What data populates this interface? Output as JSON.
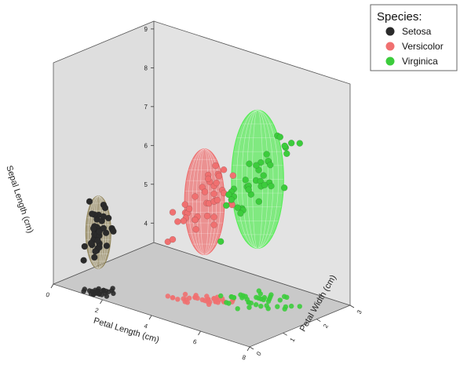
{
  "chart_data": {
    "type": "scatter3d",
    "title": "",
    "axes": {
      "x": {
        "label": "Petal Length (cm)",
        "range": [
          0,
          8
        ],
        "ticks": [
          0,
          2,
          4,
          6,
          8
        ]
      },
      "y": {
        "label": "Petal Width (cm)",
        "range": [
          0,
          3
        ],
        "ticks": [
          0,
          1,
          2,
          3
        ]
      },
      "z": {
        "label": "Sepal Length (cm)",
        "range": [
          3.5,
          9.2
        ],
        "ticks": [
          4,
          5,
          6,
          7,
          8,
          9
        ]
      }
    },
    "grid": false,
    "legend": {
      "title": "Species:",
      "position": "top-right"
    },
    "series": [
      {
        "name": "Setosa",
        "color": "#2b2b2b",
        "ellipsoid_color": "#8b7d4e",
        "points": [
          [
            1.4,
            0.2,
            5.1
          ],
          [
            1.4,
            0.2,
            4.9
          ],
          [
            1.3,
            0.2,
            4.7
          ],
          [
            1.5,
            0.2,
            4.6
          ],
          [
            1.4,
            0.2,
            5.0
          ],
          [
            1.7,
            0.4,
            5.4
          ],
          [
            1.4,
            0.3,
            4.6
          ],
          [
            1.5,
            0.2,
            5.0
          ],
          [
            1.4,
            0.2,
            4.4
          ],
          [
            1.5,
            0.1,
            4.9
          ],
          [
            1.5,
            0.2,
            5.4
          ],
          [
            1.6,
            0.2,
            4.8
          ],
          [
            1.4,
            0.1,
            4.8
          ],
          [
            1.1,
            0.1,
            4.3
          ],
          [
            1.2,
            0.2,
            5.8
          ],
          [
            1.5,
            0.4,
            5.7
          ],
          [
            1.3,
            0.4,
            5.4
          ],
          [
            1.4,
            0.3,
            5.1
          ],
          [
            1.7,
            0.3,
            5.7
          ],
          [
            1.5,
            0.3,
            5.1
          ],
          [
            1.7,
            0.2,
            5.4
          ],
          [
            1.5,
            0.4,
            5.1
          ],
          [
            1.0,
            0.2,
            4.6
          ],
          [
            1.7,
            0.5,
            5.1
          ],
          [
            1.9,
            0.2,
            4.8
          ],
          [
            1.6,
            0.2,
            5.0
          ],
          [
            1.6,
            0.4,
            5.0
          ],
          [
            1.5,
            0.2,
            5.2
          ],
          [
            1.4,
            0.2,
            5.2
          ],
          [
            1.6,
            0.2,
            4.7
          ],
          [
            1.6,
            0.2,
            4.8
          ],
          [
            1.5,
            0.4,
            5.4
          ],
          [
            1.5,
            0.1,
            5.2
          ],
          [
            1.4,
            0.2,
            5.5
          ],
          [
            1.3,
            0.2,
            5.5
          ],
          [
            1.3,
            0.3,
            4.5
          ],
          [
            1.6,
            0.6,
            5.0
          ],
          [
            1.9,
            0.4,
            5.1
          ],
          [
            1.4,
            0.3,
            4.8
          ],
          [
            1.6,
            0.2,
            5.1
          ]
        ]
      },
      {
        "name": "Versicolor",
        "color": "#f07070",
        "ellipsoid_color": "#f06060",
        "points": [
          [
            4.7,
            1.4,
            7.0
          ],
          [
            4.5,
            1.5,
            6.4
          ],
          [
            4.9,
            1.5,
            6.9
          ],
          [
            4.0,
            1.3,
            5.5
          ],
          [
            4.6,
            1.5,
            6.5
          ],
          [
            4.5,
            1.3,
            5.7
          ],
          [
            4.7,
            1.6,
            6.3
          ],
          [
            3.3,
            1.0,
            4.9
          ],
          [
            4.6,
            1.3,
            6.6
          ],
          [
            3.9,
            1.4,
            5.2
          ],
          [
            3.5,
            1.0,
            5.0
          ],
          [
            4.2,
            1.5,
            5.9
          ],
          [
            4.0,
            1.0,
            6.0
          ],
          [
            4.7,
            1.4,
            6.1
          ],
          [
            3.6,
            1.3,
            5.6
          ],
          [
            4.4,
            1.4,
            6.7
          ],
          [
            4.5,
            1.5,
            5.6
          ],
          [
            4.1,
            1.0,
            5.8
          ],
          [
            4.5,
            1.5,
            6.2
          ],
          [
            3.9,
            1.1,
            5.6
          ],
          [
            4.8,
            1.8,
            5.9
          ],
          [
            4.0,
            1.3,
            6.1
          ],
          [
            4.9,
            1.5,
            6.3
          ],
          [
            4.7,
            1.2,
            6.1
          ],
          [
            4.3,
            1.3,
            6.4
          ],
          [
            4.4,
            1.4,
            6.6
          ],
          [
            4.8,
            1.4,
            6.8
          ],
          [
            5.0,
            1.7,
            6.7
          ],
          [
            4.5,
            1.5,
            6.0
          ],
          [
            3.5,
            1.0,
            5.7
          ],
          [
            3.8,
            1.1,
            5.5
          ],
          [
            3.7,
            1.0,
            5.5
          ],
          [
            3.9,
            1.2,
            5.8
          ],
          [
            5.1,
            1.6,
            6.0
          ],
          [
            4.5,
            1.5,
            5.4
          ],
          [
            4.5,
            1.6,
            6.0
          ],
          [
            4.7,
            1.5,
            6.7
          ],
          [
            4.4,
            1.3,
            6.3
          ],
          [
            4.1,
            1.3,
            5.6
          ],
          [
            4.0,
            1.3,
            5.5
          ]
        ]
      },
      {
        "name": "Virginica",
        "color": "#3ccc3c",
        "ellipsoid_color": "#44ee44",
        "points": [
          [
            6.0,
            2.5,
            6.3
          ],
          [
            5.1,
            1.9,
            5.8
          ],
          [
            5.9,
            2.1,
            7.1
          ],
          [
            5.6,
            1.8,
            6.3
          ],
          [
            5.8,
            2.2,
            6.5
          ],
          [
            6.6,
            2.1,
            7.6
          ],
          [
            4.5,
            1.7,
            4.9
          ],
          [
            6.3,
            1.8,
            7.3
          ],
          [
            5.8,
            1.8,
            6.7
          ],
          [
            6.1,
            2.5,
            7.2
          ],
          [
            5.1,
            2.0,
            6.5
          ],
          [
            5.3,
            1.9,
            6.4
          ],
          [
            5.5,
            2.1,
            6.8
          ],
          [
            5.0,
            2.0,
            5.7
          ],
          [
            5.1,
            2.4,
            5.8
          ],
          [
            5.3,
            2.3,
            6.4
          ],
          [
            5.5,
            1.8,
            6.5
          ],
          [
            6.7,
            2.2,
            7.7
          ],
          [
            6.9,
            2.3,
            7.7
          ],
          [
            5.0,
            1.5,
            6.0
          ],
          [
            5.7,
            2.3,
            6.9
          ],
          [
            4.9,
            2.0,
            5.6
          ],
          [
            6.7,
            2.0,
            7.7
          ],
          [
            4.9,
            1.8,
            6.3
          ],
          [
            5.7,
            2.1,
            6.7
          ],
          [
            6.0,
            1.8,
            7.2
          ],
          [
            4.8,
            1.8,
            6.2
          ],
          [
            4.9,
            1.8,
            6.1
          ],
          [
            5.6,
            2.1,
            6.4
          ],
          [
            5.8,
            1.6,
            7.2
          ],
          [
            6.1,
            1.9,
            7.4
          ],
          [
            6.4,
            2.0,
            7.9
          ],
          [
            5.6,
            2.2,
            6.4
          ],
          [
            5.1,
            1.5,
            6.3
          ],
          [
            5.6,
            1.4,
            6.1
          ],
          [
            6.1,
            2.3,
            7.7
          ],
          [
            5.6,
            2.4,
            6.3
          ],
          [
            5.5,
            1.8,
            6.4
          ],
          [
            4.8,
            1.8,
            6.0
          ],
          [
            5.4,
            2.1,
            6.9
          ]
        ]
      }
    ]
  }
}
